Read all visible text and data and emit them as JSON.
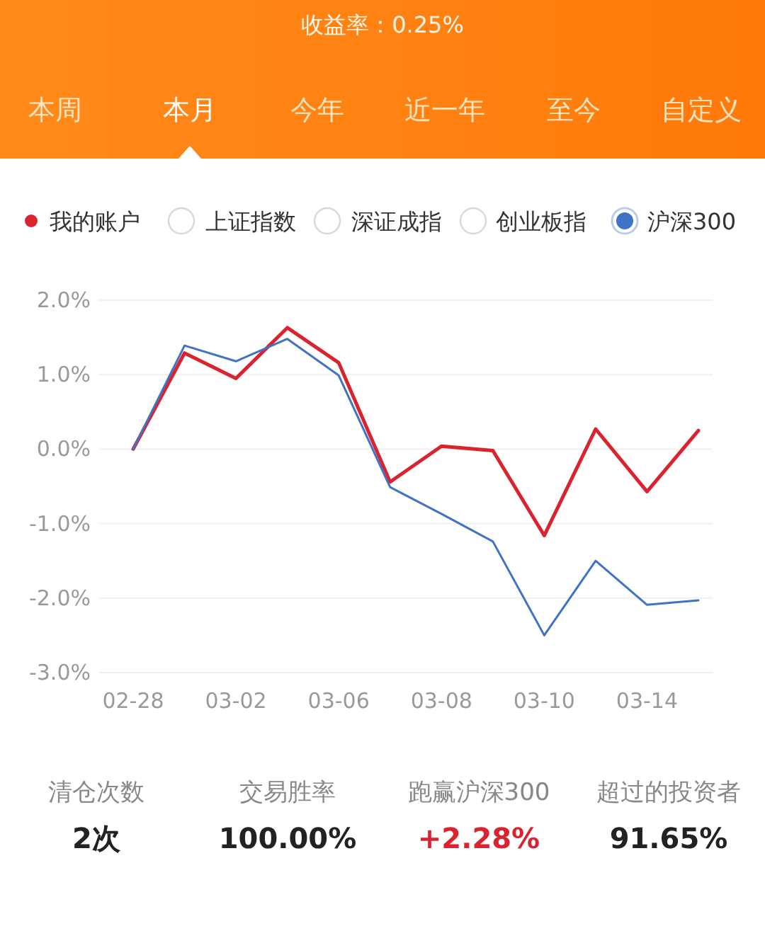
{
  "chart_data": {
    "type": "line",
    "title": "收益率：0.25%",
    "categories": [
      "02-28",
      null,
      "03-02",
      null,
      "03-06",
      null,
      "03-08",
      null,
      "03-10",
      null,
      "03-14",
      null
    ],
    "series": [
      {
        "name": "我的账户",
        "color": "#d9232e",
        "values": [
          0,
          1.29,
          0.95,
          1.63,
          1.16,
          -0.44,
          0.04,
          -0.02,
          -1.16,
          0.27,
          -0.57,
          0.25
        ]
      },
      {
        "name": "沪深300",
        "color": "#3f73c5",
        "values": [
          0,
          1.39,
          1.18,
          1.48,
          0.99,
          -0.51,
          -0.87,
          -1.24,
          -2.5,
          -1.5,
          -2.09,
          -2.03
        ]
      }
    ],
    "ylim": [
      -3,
      2
    ],
    "yticks": [
      {
        "value": -3,
        "label": "-3.0%"
      },
      {
        "value": -2,
        "label": "-2.0%"
      },
      {
        "value": -1,
        "label": "-1.0%"
      },
      {
        "value": 0,
        "label": "0.0%"
      },
      {
        "value": 1,
        "label": "1.0%"
      },
      {
        "value": 2,
        "label": "2.0%"
      }
    ],
    "grid": "y",
    "legend": "top",
    "marker": "none",
    "line_style": "solid",
    "annotations": [
      "本周",
      "本月",
      "今年",
      "近一年",
      "至今",
      "自定义",
      "上证指数",
      "深证成指",
      "创业板指",
      "清仓次数",
      "2次",
      "交易胜率",
      "100.00%",
      "跑赢沪深300",
      "+2.28%",
      "超过的投资者",
      "91.65%"
    ]
  }
}
